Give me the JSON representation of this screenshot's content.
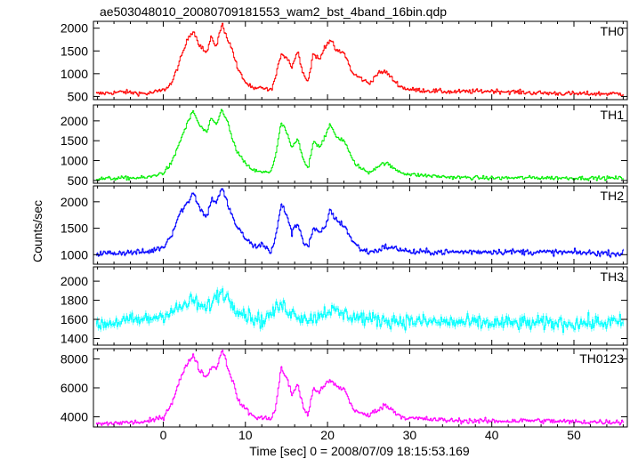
{
  "chart_data": {
    "type": "line",
    "title": "ae503048010_20080709181553_wam2_bst_4band_16bin.qdp",
    "xlabel": "Time [sec] 0 = 2008/07/09 18:15:53.169",
    "ylabel": "Counts/sec",
    "xlim": [
      -8.5,
      56.5
    ],
    "x_ticks": [
      0,
      10,
      20,
      30,
      40,
      50
    ],
    "error_bars": true,
    "grid": false,
    "panels": [
      {
        "name": "TH0",
        "color": "#ff0000",
        "ylim": [
          430,
          2150
        ],
        "y_ticks": [
          500,
          1000,
          1500,
          2000
        ],
        "keypoints": [
          [
            -8,
            560
          ],
          [
            -5,
            600
          ],
          [
            -2,
            560
          ],
          [
            0,
            640
          ],
          [
            1,
            800
          ],
          [
            2,
            1300
          ],
          [
            3,
            1800
          ],
          [
            3.6,
            1950
          ],
          [
            4.3,
            1650
          ],
          [
            5.2,
            1450
          ],
          [
            5.8,
            1800
          ],
          [
            6.4,
            1600
          ],
          [
            7.1,
            2100
          ],
          [
            7.8,
            1750
          ],
          [
            8.4,
            1500
          ],
          [
            9,
            1100
          ],
          [
            10,
            800
          ],
          [
            11,
            650
          ],
          [
            12,
            700
          ],
          [
            13,
            620
          ],
          [
            13.6,
            900
          ],
          [
            14.3,
            1450
          ],
          [
            15,
            1350
          ],
          [
            15.6,
            1150
          ],
          [
            16.3,
            1500
          ],
          [
            17,
            1000
          ],
          [
            17.6,
            830
          ],
          [
            18.2,
            1450
          ],
          [
            19,
            1300
          ],
          [
            19.6,
            1600
          ],
          [
            20.3,
            1750
          ],
          [
            21,
            1500
          ],
          [
            22,
            1450
          ],
          [
            23,
            1000
          ],
          [
            24,
            900
          ],
          [
            25,
            780
          ],
          [
            26,
            1000
          ],
          [
            27,
            1050
          ],
          [
            28,
            850
          ],
          [
            29,
            700
          ],
          [
            30,
            650
          ],
          [
            35,
            600
          ],
          [
            40,
            620
          ],
          [
            45,
            580
          ],
          [
            50,
            560
          ],
          [
            56,
            560
          ]
        ],
        "noise_sd": 45
      },
      {
        "name": "TH1",
        "color": "#00ee00",
        "ylim": [
          430,
          2400
        ],
        "y_ticks": [
          500,
          1000,
          1500,
          2000
        ],
        "keypoints": [
          [
            -8,
            540
          ],
          [
            -5,
            560
          ],
          [
            -2,
            570
          ],
          [
            0,
            700
          ],
          [
            1,
            950
          ],
          [
            2,
            1500
          ],
          [
            3,
            2000
          ],
          [
            3.6,
            2250
          ],
          [
            4.3,
            1900
          ],
          [
            5.2,
            1700
          ],
          [
            5.8,
            2050
          ],
          [
            6.4,
            1900
          ],
          [
            7.1,
            2300
          ],
          [
            7.8,
            1950
          ],
          [
            8.4,
            1500
          ],
          [
            9,
            1200
          ],
          [
            10,
            900
          ],
          [
            11,
            750
          ],
          [
            12,
            700
          ],
          [
            13,
            720
          ],
          [
            13.6,
            1100
          ],
          [
            14.3,
            1950
          ],
          [
            15,
            1700
          ],
          [
            15.6,
            1300
          ],
          [
            16.3,
            1550
          ],
          [
            17,
            1000
          ],
          [
            17.6,
            800
          ],
          [
            18.2,
            1500
          ],
          [
            19,
            1350
          ],
          [
            19.6,
            1600
          ],
          [
            20.3,
            1900
          ],
          [
            21,
            1600
          ],
          [
            22,
            1500
          ],
          [
            23,
            1000
          ],
          [
            24,
            800
          ],
          [
            25,
            700
          ],
          [
            26,
            850
          ],
          [
            27,
            950
          ],
          [
            28,
            800
          ],
          [
            29,
            700
          ],
          [
            30,
            650
          ],
          [
            35,
            580
          ],
          [
            40,
            560
          ],
          [
            45,
            570
          ],
          [
            50,
            560
          ],
          [
            56,
            560
          ]
        ],
        "noise_sd": 45
      },
      {
        "name": "TH2",
        "color": "#0000ff",
        "ylim": [
          820,
          2300
        ],
        "y_ticks": [
          1000,
          1500,
          2000
        ],
        "keypoints": [
          [
            -8,
            1020
          ],
          [
            -5,
            1040
          ],
          [
            -2,
            1050
          ],
          [
            0,
            1150
          ],
          [
            1,
            1400
          ],
          [
            2,
            1800
          ],
          [
            3,
            2000
          ],
          [
            3.6,
            2200
          ],
          [
            4.3,
            1900
          ],
          [
            5.2,
            1700
          ],
          [
            5.8,
            2050
          ],
          [
            6.4,
            2000
          ],
          [
            7.1,
            2250
          ],
          [
            7.8,
            1950
          ],
          [
            8.4,
            1700
          ],
          [
            9,
            1500
          ],
          [
            10,
            1300
          ],
          [
            11,
            1150
          ],
          [
            12,
            1200
          ],
          [
            13,
            1050
          ],
          [
            13.6,
            1300
          ],
          [
            14.3,
            1950
          ],
          [
            15,
            1750
          ],
          [
            15.6,
            1400
          ],
          [
            16.3,
            1600
          ],
          [
            17,
            1250
          ],
          [
            17.6,
            1150
          ],
          [
            18.2,
            1500
          ],
          [
            19,
            1400
          ],
          [
            19.6,
            1500
          ],
          [
            20.3,
            1850
          ],
          [
            21,
            1650
          ],
          [
            22,
            1550
          ],
          [
            23,
            1250
          ],
          [
            24,
            1100
          ],
          [
            25,
            1050
          ],
          [
            26,
            1080
          ],
          [
            27,
            1150
          ],
          [
            28,
            1120
          ],
          [
            29,
            1100
          ],
          [
            30,
            1050
          ],
          [
            35,
            1050
          ],
          [
            40,
            1060
          ],
          [
            45,
            1050
          ],
          [
            50,
            1040
          ],
          [
            56,
            1020
          ]
        ],
        "noise_sd": 50
      },
      {
        "name": "TH3",
        "color": "#00ffff",
        "ylim": [
          1330,
          2150
        ],
        "y_ticks": [
          1400,
          1600,
          1800,
          2000
        ],
        "keypoints": [
          [
            -8,
            1550
          ],
          [
            -5,
            1580
          ],
          [
            -2,
            1600
          ],
          [
            0,
            1650
          ],
          [
            2,
            1720
          ],
          [
            3.6,
            1800
          ],
          [
            5,
            1700
          ],
          [
            7.1,
            1900
          ],
          [
            8.5,
            1750
          ],
          [
            10,
            1650
          ],
          [
            12,
            1580
          ],
          [
            14.3,
            1750
          ],
          [
            16,
            1650
          ],
          [
            18,
            1600
          ],
          [
            20,
            1700
          ],
          [
            22,
            1650
          ],
          [
            25,
            1600
          ],
          [
            30,
            1580
          ],
          [
            40,
            1560
          ],
          [
            50,
            1560
          ],
          [
            56,
            1570
          ]
        ],
        "noise_sd": 70
      },
      {
        "name": "TH0123",
        "color": "#ff00ff",
        "ylim": [
          3300,
          8700
        ],
        "y_ticks": [
          4000,
          6000,
          8000
        ],
        "keypoints": [
          [
            -8,
            3500
          ],
          [
            -5,
            3600
          ],
          [
            -2,
            3650
          ],
          [
            0,
            4000
          ],
          [
            1,
            5000
          ],
          [
            2,
            6600
          ],
          [
            3,
            7800
          ],
          [
            3.6,
            8300
          ],
          [
            4.3,
            7300
          ],
          [
            5.2,
            6700
          ],
          [
            5.8,
            7500
          ],
          [
            6.4,
            7300
          ],
          [
            7.1,
            8700
          ],
          [
            7.8,
            7400
          ],
          [
            8.4,
            6500
          ],
          [
            9,
            5200
          ],
          [
            10,
            4500
          ],
          [
            11,
            4000
          ],
          [
            12,
            3900
          ],
          [
            13,
            3900
          ],
          [
            13.6,
            4500
          ],
          [
            14.3,
            7400
          ],
          [
            15,
            6600
          ],
          [
            15.6,
            5500
          ],
          [
            16.3,
            6300
          ],
          [
            17,
            4600
          ],
          [
            17.6,
            4100
          ],
          [
            18.2,
            6000
          ],
          [
            19,
            5700
          ],
          [
            19.6,
            6200
          ],
          [
            20.3,
            6500
          ],
          [
            21,
            6100
          ],
          [
            22,
            5900
          ],
          [
            23,
            4600
          ],
          [
            24,
            4200
          ],
          [
            25,
            4100
          ],
          [
            26,
            4500
          ],
          [
            27,
            4800
          ],
          [
            28,
            4400
          ],
          [
            29,
            4000
          ],
          [
            30,
            3900
          ],
          [
            35,
            3750
          ],
          [
            40,
            3700
          ],
          [
            45,
            3750
          ],
          [
            50,
            3650
          ],
          [
            56,
            3650
          ]
        ],
        "noise_sd": 160
      }
    ]
  }
}
